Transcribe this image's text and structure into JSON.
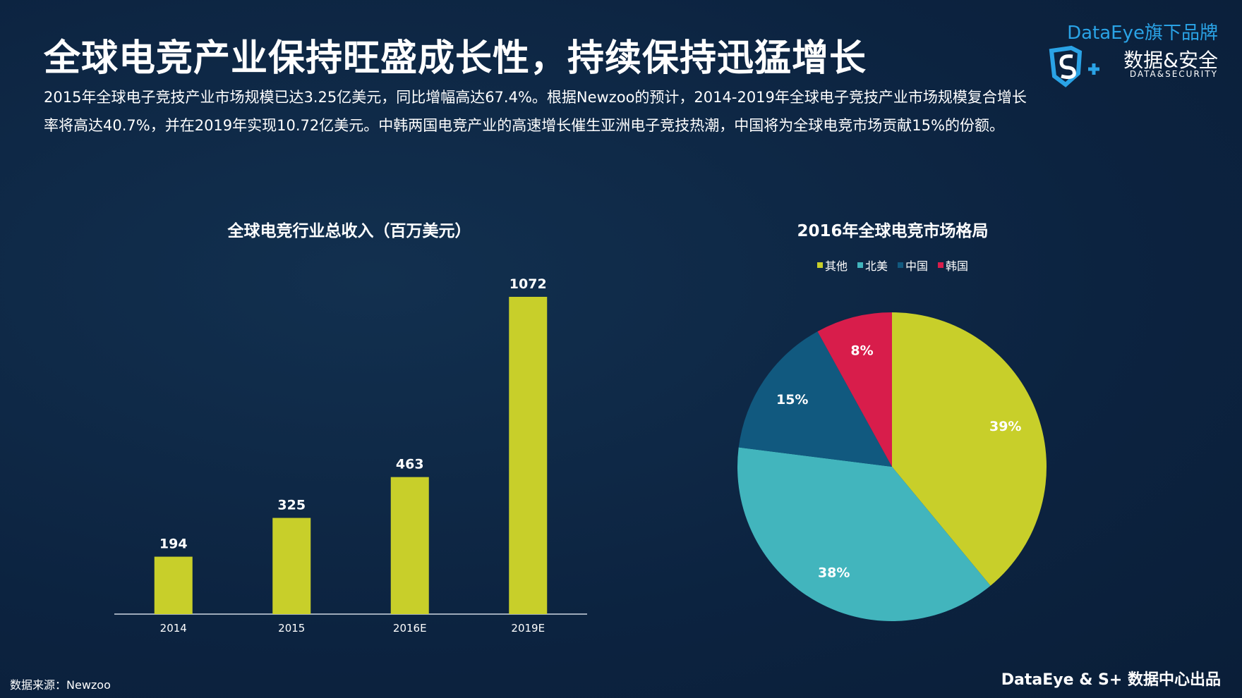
{
  "page": {
    "title": "全球电竞产业保持旺盛成长性，持续保持迅猛增长",
    "intro": "2015年全球电子竞技产业市场规模已达3.25亿美元，同比增幅高达67.4%。根据Newzoo的预计，2014-2019年全球电子竞技产业市场规模复合增长率将高达40.7%，并在2019年实现10.72亿美元。中韩两国电竞产业的高速增长催生亚洲电子竞技热潮，中国将为全球电竞市场贡献15%的份额。",
    "source": "数据来源：Newzoo",
    "footer": "DataEye & S+ 数据中心出品"
  },
  "brand": {
    "top": "DataEye旗下品牌",
    "logo_icon": "s-plus-shield-icon",
    "name_cn": "数据&安全",
    "name_en": "DATA&SECURITY"
  },
  "colors": {
    "background": "#0c2340",
    "bar": "#c8cf2a",
    "other": "#c8cf2a",
    "north_america": "#42b5bd",
    "china": "#11597f",
    "korea": "#d81d4b"
  },
  "chart_data": [
    {
      "type": "bar",
      "title": "全球电竞行业总收入（百万美元）",
      "categories": [
        "2014",
        "2015",
        "2016E",
        "2019E"
      ],
      "values": [
        194,
        325,
        463,
        1072
      ],
      "xlabel": "",
      "ylabel": "",
      "ylim": [
        0,
        1072
      ],
      "grid": false,
      "data_labels": true
    },
    {
      "type": "pie",
      "title": "2016年全球电竞市场格局",
      "legend_position": "top",
      "slices": [
        {
          "label": "其他",
          "value": 39,
          "display": "39%",
          "color": "#c8cf2a"
        },
        {
          "label": "北美",
          "value": 38,
          "display": "38%",
          "color": "#42b5bd"
        },
        {
          "label": "中国",
          "value": 15,
          "display": "15%",
          "color": "#11597f"
        },
        {
          "label": "韩国",
          "value": 8,
          "display": "8%",
          "color": "#d81d4b"
        }
      ]
    }
  ]
}
